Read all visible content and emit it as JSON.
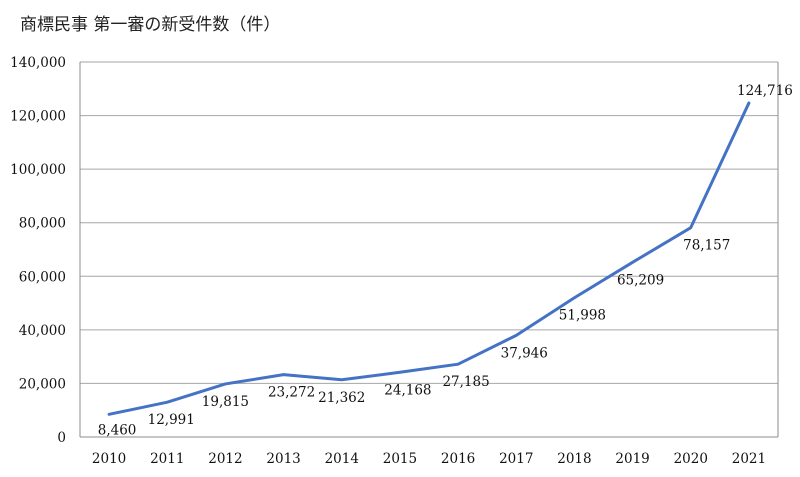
{
  "chart_data": {
    "type": "line",
    "title": "商標民事 第一審の新受件数（件）",
    "xlabel": "",
    "ylabel": "",
    "categories": [
      "2010",
      "2011",
      "2012",
      "2013",
      "2014",
      "2015",
      "2016",
      "2017",
      "2018",
      "2019",
      "2020",
      "2021"
    ],
    "series": [
      {
        "values": [
          8460,
          12991,
          19815,
          23272,
          21362,
          24168,
          27185,
          37946,
          51998,
          65209,
          78157,
          124716
        ],
        "data_labels": [
          "8,460",
          "12,991",
          "19,815",
          "23,272",
          "21,362",
          "24,168",
          "27,185",
          "37,946",
          "51,998",
          "65,209",
          "78,157",
          "124,716"
        ],
        "color": "#4472c4"
      }
    ],
    "ylim": [
      0,
      140000
    ],
    "yticks": [
      0,
      20000,
      40000,
      60000,
      80000,
      100000,
      120000,
      140000
    ],
    "ytick_labels": [
      "0",
      "20,000",
      "40,000",
      "60,000",
      "80,000",
      "100,000",
      "120,000",
      "140,000"
    ],
    "grid": true,
    "grid_color": "#a6a6a6",
    "legend": "none"
  }
}
